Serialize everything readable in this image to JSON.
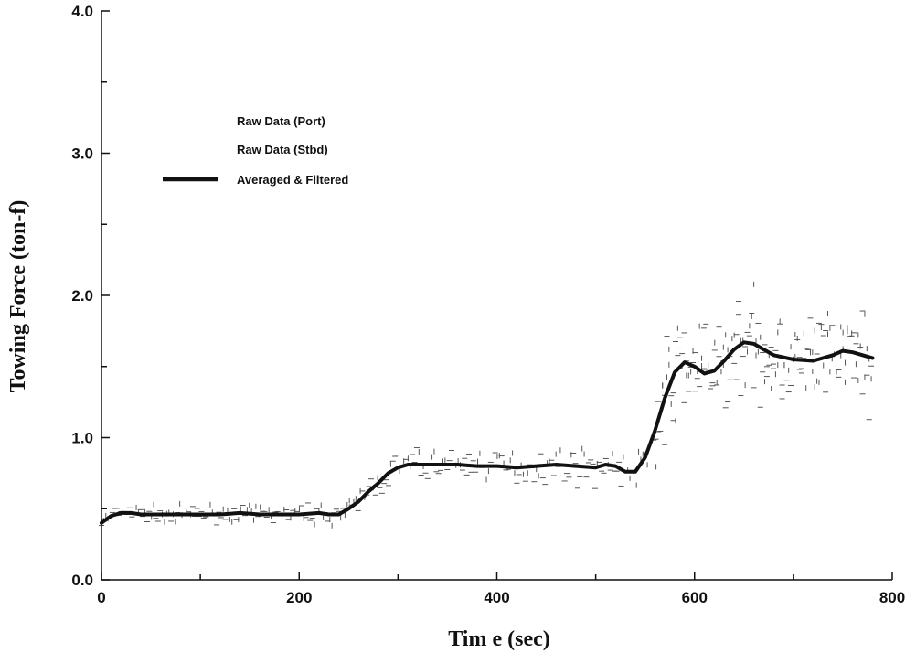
{
  "chart_data": {
    "type": "line",
    "title": "",
    "xlabel": "Tim e (sec)",
    "ylabel": "Towing Force (ton-f)",
    "xlim": [
      0,
      800
    ],
    "ylim": [
      0.0,
      4.0
    ],
    "x_ticks": [
      0,
      200,
      400,
      600,
      800
    ],
    "x_tick_labels": [
      "0",
      "200",
      "400",
      "600",
      "800"
    ],
    "y_ticks": [
      0.0,
      1.0,
      2.0,
      3.0,
      4.0
    ],
    "y_tick_labels": [
      "0.0",
      "1.0",
      "2.0",
      "3.0",
      "4.0"
    ],
    "grid": false,
    "legend_position": "top-left",
    "colors": {
      "axis": "#111111",
      "line": "#111111",
      "raw": "#555555"
    },
    "series": [
      {
        "name": "Raw Data (Port)",
        "style": "scatter-dots"
      },
      {
        "name": "Raw Data (Stbd)",
        "style": "scatter-dots"
      },
      {
        "name": "Averaged & Filtered",
        "style": "thick-line",
        "x": [
          0,
          10,
          20,
          30,
          40,
          60,
          80,
          100,
          120,
          140,
          160,
          180,
          200,
          220,
          230,
          240,
          250,
          260,
          270,
          280,
          290,
          300,
          310,
          320,
          340,
          360,
          380,
          400,
          420,
          440,
          460,
          480,
          500,
          510,
          520,
          530,
          540,
          550,
          560,
          570,
          580,
          590,
          600,
          610,
          620,
          630,
          640,
          650,
          660,
          670,
          680,
          700,
          720,
          740,
          750,
          760,
          770,
          780
        ],
        "y": [
          0.4,
          0.45,
          0.47,
          0.47,
          0.46,
          0.46,
          0.46,
          0.46,
          0.46,
          0.47,
          0.46,
          0.46,
          0.46,
          0.47,
          0.46,
          0.46,
          0.5,
          0.55,
          0.62,
          0.68,
          0.75,
          0.79,
          0.81,
          0.81,
          0.81,
          0.81,
          0.8,
          0.8,
          0.79,
          0.8,
          0.81,
          0.8,
          0.79,
          0.81,
          0.8,
          0.76,
          0.76,
          0.86,
          1.05,
          1.28,
          1.46,
          1.53,
          1.5,
          1.45,
          1.47,
          1.54,
          1.62,
          1.67,
          1.66,
          1.62,
          1.58,
          1.55,
          1.54,
          1.58,
          1.61,
          1.6,
          1.58,
          1.56
        ]
      }
    ]
  }
}
